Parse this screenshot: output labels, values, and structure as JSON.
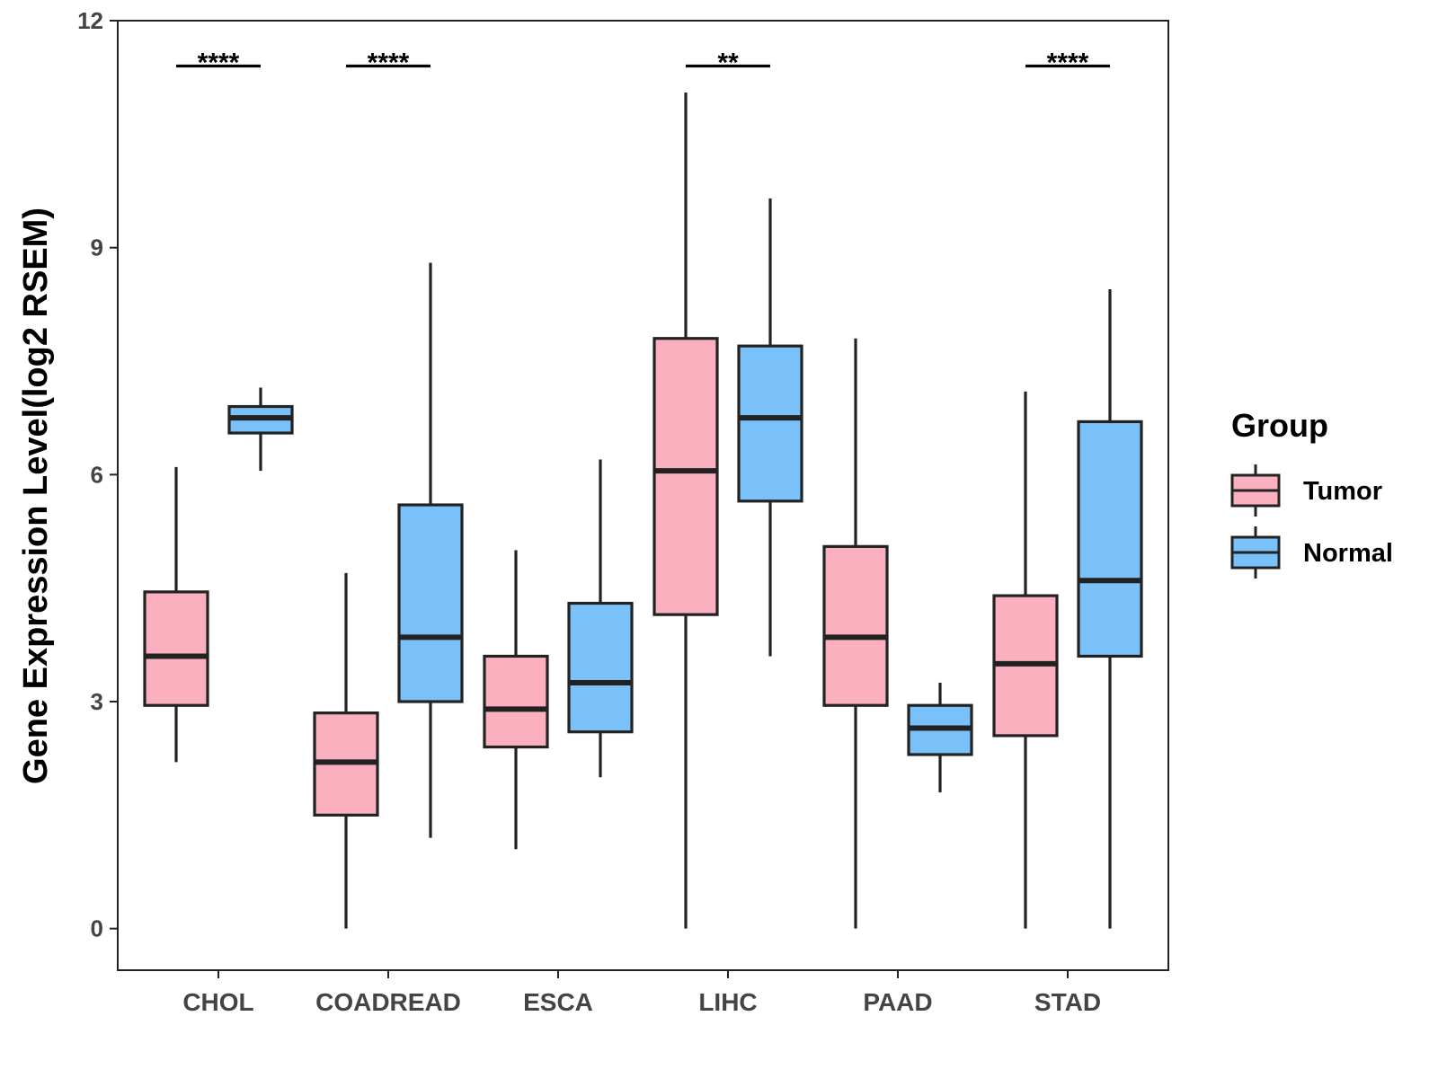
{
  "colors": {
    "tumor": "#FBB0C0",
    "normal": "#79C1F8",
    "stroke": "#222222",
    "axis": "#222222"
  },
  "chart_data": {
    "type": "boxplot",
    "title": "",
    "xlabel": "",
    "ylabel": "Gene Expression Level(log2 RSEM)",
    "ylim": [
      -0.55,
      12
    ],
    "yticks": [
      0,
      3,
      6,
      9,
      12
    ],
    "categories": [
      "CHOL",
      "COADREAD",
      "ESCA",
      "LIHC",
      "PAAD",
      "STAD"
    ],
    "legend": {
      "title": "Group",
      "position": "right",
      "entries": [
        "Tumor",
        "Normal"
      ]
    },
    "series": [
      {
        "name": "Tumor",
        "boxes": [
          {
            "whisker_low": 2.2,
            "q1": 2.95,
            "median": 3.6,
            "q3": 4.45,
            "whisker_high": 6.1
          },
          {
            "whisker_low": 0.0,
            "q1": 1.5,
            "median": 2.2,
            "q3": 2.85,
            "whisker_high": 4.7
          },
          {
            "whisker_low": 1.05,
            "q1": 2.4,
            "median": 2.9,
            "q3": 3.6,
            "whisker_high": 5.0
          },
          {
            "whisker_low": 0.0,
            "q1": 4.15,
            "median": 6.05,
            "q3": 7.8,
            "whisker_high": 11.05
          },
          {
            "whisker_low": 0.0,
            "q1": 2.95,
            "median": 3.85,
            "q3": 5.05,
            "whisker_high": 7.8
          },
          {
            "whisker_low": 0.0,
            "q1": 2.55,
            "median": 3.5,
            "q3": 4.4,
            "whisker_high": 7.1
          }
        ]
      },
      {
        "name": "Normal",
        "boxes": [
          {
            "whisker_low": 6.05,
            "q1": 6.55,
            "median": 6.75,
            "q3": 6.9,
            "whisker_high": 7.15
          },
          {
            "whisker_low": 1.2,
            "q1": 3.0,
            "median": 3.85,
            "q3": 5.6,
            "whisker_high": 8.8
          },
          {
            "whisker_low": 2.0,
            "q1": 2.6,
            "median": 3.25,
            "q3": 4.3,
            "whisker_high": 6.2
          },
          {
            "whisker_low": 3.6,
            "q1": 5.65,
            "median": 6.75,
            "q3": 7.7,
            "whisker_high": 9.65
          },
          {
            "whisker_low": 1.8,
            "q1": 2.3,
            "median": 2.65,
            "q3": 2.95,
            "whisker_high": 3.25
          },
          {
            "whisker_low": 0.0,
            "q1": 3.6,
            "median": 4.6,
            "q3": 6.7,
            "whisker_high": 8.45
          }
        ]
      }
    ],
    "significance": [
      {
        "category": "CHOL",
        "label": "****"
      },
      {
        "category": "COADREAD",
        "label": "****"
      },
      {
        "category": "ESCA",
        "label": ""
      },
      {
        "category": "LIHC",
        "label": "**"
      },
      {
        "category": "PAAD",
        "label": ""
      },
      {
        "category": "STAD",
        "label": "****"
      }
    ],
    "significance_y": 11.4
  }
}
